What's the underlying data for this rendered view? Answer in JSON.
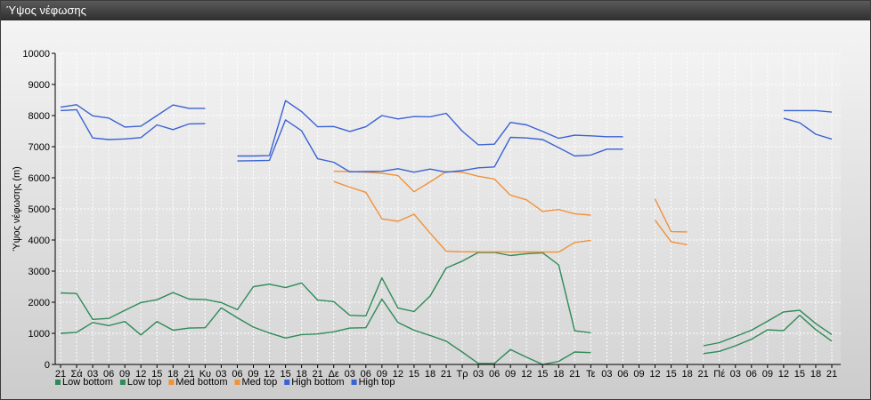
{
  "window": {
    "title": "Ύψος νέφωσης"
  },
  "chart_data": {
    "type": "line",
    "ylabel": "Ύψος νέφωσης (m)",
    "ylim": [
      0,
      10000
    ],
    "yticks": [
      0,
      1000,
      2000,
      3000,
      4000,
      5000,
      6000,
      7000,
      8000,
      9000,
      10000
    ],
    "grid": true,
    "legend_position": "bottom-left",
    "categories": [
      "21",
      "Σά",
      "03",
      "06",
      "09",
      "12",
      "15",
      "18",
      "21",
      "Κυ",
      "03",
      "06",
      "09",
      "12",
      "15",
      "18",
      "21",
      "Δε",
      "03",
      "06",
      "09",
      "12",
      "15",
      "18",
      "21",
      "Τρ",
      "03",
      "06",
      "09",
      "12",
      "15",
      "18",
      "21",
      "Τε",
      "03",
      "06",
      "09",
      "12",
      "15",
      "18",
      "21",
      "Πέ",
      "03",
      "06",
      "09",
      "12",
      "15",
      "18",
      "21"
    ],
    "series": [
      {
        "name": "Low bottom",
        "color": "#2e8b57",
        "values": [
          1000,
          1030,
          1350,
          1250,
          1380,
          950,
          1380,
          1100,
          1170,
          1180,
          1820,
          1500,
          1200,
          1010,
          850,
          960,
          980,
          1050,
          1170,
          1180,
          2100,
          1350,
          1100,
          930,
          750,
          400,
          30,
          30,
          480,
          230,
          0,
          100,
          400,
          380,
          null,
          null,
          null,
          null,
          null,
          null,
          350,
          420,
          600,
          810,
          1110,
          1090,
          1580,
          1120,
          750
        ]
      },
      {
        "name": "Low top",
        "color": "#2e8b57",
        "values": [
          2300,
          2280,
          1450,
          1480,
          1740,
          1990,
          2080,
          2310,
          2100,
          2090,
          1990,
          1760,
          2500,
          2580,
          2470,
          2620,
          2070,
          2020,
          1580,
          1560,
          2780,
          1810,
          1700,
          2200,
          3100,
          3320,
          3600,
          3600,
          3500,
          3560,
          3590,
          3200,
          1080,
          1020,
          null,
          null,
          null,
          null,
          null,
          null,
          600,
          700,
          900,
          1100,
          1390,
          1690,
          1740,
          1310,
          960
        ]
      },
      {
        "name": "Med bottom",
        "color": "#f0923a",
        "values": [
          null,
          null,
          null,
          null,
          null,
          null,
          null,
          null,
          null,
          null,
          null,
          null,
          null,
          null,
          null,
          null,
          null,
          5880,
          5700,
          5530,
          4680,
          4600,
          4830,
          4220,
          3640,
          3620,
          3620,
          3620,
          3610,
          3620,
          3610,
          3610,
          3920,
          3990,
          null,
          null,
          null,
          4640,
          3940,
          3850,
          null,
          null,
          null,
          null,
          null,
          null,
          null,
          null,
          null
        ]
      },
      {
        "name": "Med top",
        "color": "#f0923a",
        "values": [
          null,
          null,
          null,
          null,
          null,
          null,
          null,
          null,
          null,
          null,
          null,
          null,
          null,
          null,
          null,
          null,
          null,
          6210,
          6200,
          6180,
          6150,
          6070,
          5550,
          5870,
          6200,
          6180,
          6050,
          5960,
          5440,
          5290,
          4920,
          4980,
          4840,
          4800,
          null,
          null,
          null,
          5320,
          4270,
          4260,
          null,
          null,
          null,
          null,
          null,
          null,
          null,
          null,
          null
        ]
      },
      {
        "name": "High bottom",
        "color": "#3a62d4",
        "values": [
          8160,
          8190,
          7280,
          7230,
          7250,
          7290,
          7700,
          7550,
          7730,
          7740,
          null,
          6540,
          6550,
          6560,
          7860,
          7510,
          6610,
          6500,
          6190,
          6200,
          6210,
          6290,
          6180,
          6280,
          6180,
          6230,
          6320,
          6350,
          7300,
          7280,
          7230,
          6970,
          6700,
          6730,
          6920,
          6920,
          null,
          null,
          null,
          null,
          null,
          null,
          null,
          null,
          null,
          7910,
          7770,
          7400,
          7240
        ]
      },
      {
        "name": "High top",
        "color": "#3a62d4",
        "values": [
          8270,
          8350,
          7990,
          7920,
          7630,
          7660,
          8000,
          8340,
          8230,
          8230,
          null,
          6700,
          6700,
          6710,
          8480,
          8130,
          7640,
          7650,
          7490,
          7640,
          8000,
          7890,
          7970,
          7960,
          8070,
          7500,
          7060,
          7080,
          7780,
          7700,
          7490,
          7270,
          7370,
          7350,
          7320,
          7320,
          null,
          null,
          null,
          null,
          null,
          null,
          null,
          null,
          null,
          8160,
          8160,
          8160,
          8110
        ]
      }
    ]
  }
}
